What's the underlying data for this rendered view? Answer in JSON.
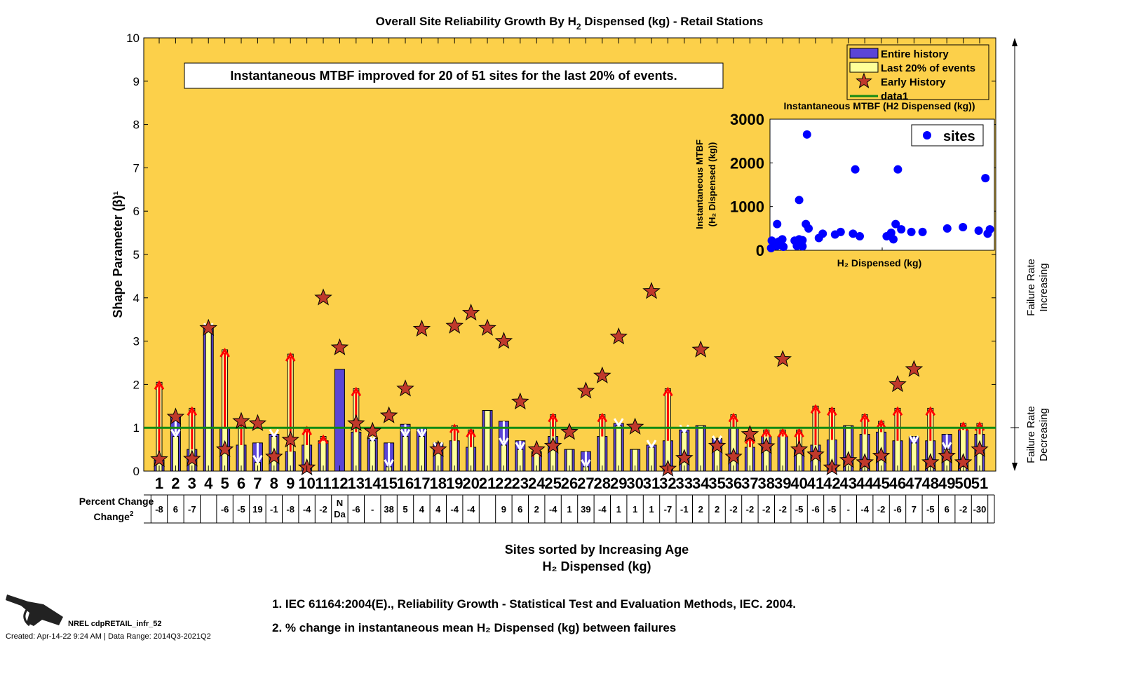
{
  "chart_data": [
    {
      "type": "bar",
      "title": "Overall Site Reliability Growth By H2 Dispensed (kg) - Retail Stations",
      "title_parts": {
        "pre": "Overall Site Reliability Growth By H",
        "sub": "2",
        "post": " Dispensed (kg) - Retail Stations"
      },
      "ylabel": "Shape Parameter (β)¹",
      "xlabel_line1": "Sites sorted by Increasing Age",
      "xlabel_line2": "H₂ Dispensed (kg)",
      "ylim": [
        0,
        10
      ],
      "yticks": [
        0,
        1,
        2,
        3,
        4,
        5,
        6,
        7,
        8,
        9,
        10
      ],
      "grid": false,
      "background": "#FCD04A",
      "reference_line": {
        "name": "data1",
        "value": 1,
        "color": "#138A13"
      },
      "annotation": "Instantaneous MTBF improved for 20 of 51 sites for the last 20% of events.",
      "legend": {
        "placement": "top-right",
        "entries": [
          "Entire history",
          "Last 20% of events",
          "Early History",
          "data1"
        ]
      },
      "colors": {
        "entire": "#5B45D6",
        "last20": "#FFFF99",
        "star": "#C0392B",
        "up_arrow": "#FF0000",
        "down_arrow": "#FFFFFF"
      },
      "categories": [
        "1",
        "2",
        "3",
        "4",
        "5",
        "6",
        "7",
        "8",
        "9",
        "10",
        "11",
        "12",
        "13",
        "14",
        "15",
        "16",
        "17",
        "18",
        "19",
        "20",
        "21",
        "22",
        "23",
        "24",
        "25",
        "26",
        "27",
        "28",
        "29",
        "30",
        "31",
        "32",
        "33",
        "34",
        "35",
        "36",
        "37",
        "38",
        "39",
        "40",
        "41",
        "42",
        "43",
        "44",
        "45",
        "46",
        "47",
        "48",
        "49",
        "50",
        "51"
      ],
      "series": [
        {
          "name": "Entire history",
          "values": [
            0.25,
            1.25,
            0.5,
            3.3,
            1.0,
            0.6,
            0.65,
            0.85,
            0.45,
            0.6,
            0.7,
            2.35,
            0.9,
            0.75,
            0.65,
            1.08,
            1.0,
            0.65,
            0.7,
            0.55,
            1.4,
            1.15,
            0.7,
            0.45,
            0.8,
            0.5,
            0.45,
            0.8,
            1.1,
            0.5,
            0.6,
            0.7,
            0.95,
            1.05,
            0.75,
            1.0,
            0.55,
            0.8,
            0.8,
            0.5,
            0.6,
            0.72,
            1.05,
            0.85,
            0.9,
            0.7,
            0.8,
            0.7,
            0.85,
            0.95,
            0.85
          ]
        },
        {
          "name": "Last 20% of events",
          "values": [
            2.05,
            0.8,
            1.45,
            3.25,
            2.8,
            1.15,
            0.2,
            0.8,
            2.7,
            1.0,
            0.8,
            null,
            1.9,
            0.7,
            0.1,
            0.8,
            0.8,
            0.5,
            1.05,
            0.95,
            1.4,
            0.6,
            0.5,
            0.5,
            1.3,
            0.5,
            0.1,
            1.3,
            1.05,
            0.5,
            0.55,
            1.9,
            0.9,
            1.05,
            0.65,
            1.3,
            0.8,
            0.95,
            0.95,
            0.95,
            1.5,
            1.45,
            1.05,
            1.3,
            1.15,
            1.45,
            0.65,
            1.45,
            0.5,
            1.1,
            1.1
          ]
        },
        {
          "name": "Early History",
          "values": [
            0.27,
            1.25,
            0.28,
            3.3,
            0.5,
            1.15,
            1.1,
            0.33,
            0.72,
            0.08,
            4.0,
            2.85,
            1.1,
            0.92,
            1.28,
            1.9,
            3.28,
            0.5,
            3.35,
            3.65,
            3.3,
            3.0,
            1.6,
            0.5,
            0.58,
            0.9,
            1.85,
            2.2,
            3.1,
            1.02,
            4.15,
            0.05,
            0.3,
            2.8,
            0.58,
            0.33,
            0.85,
            0.57,
            2.58,
            0.5,
            0.38,
            0.08,
            0.25,
            0.2,
            0.35,
            2.0,
            2.35,
            0.2,
            0.35,
            0.2,
            0.5
          ]
        }
      ],
      "percent_change_label": "Percent Change",
      "percent_change_sup": "2",
      "percent_change": [
        "-8",
        "6",
        "-7",
        "",
        "-6",
        "-5",
        "19",
        "-1",
        "-8",
        "-4",
        "-2",
        "N Da",
        "-6",
        "-",
        "38",
        "5",
        "4",
        "4",
        "-4",
        "-4",
        "",
        "9",
        "6",
        "2",
        "-4",
        "1",
        "39",
        "-4",
        "1",
        "1",
        "1",
        "-7",
        "-1",
        "2",
        "2",
        "-2",
        "-2",
        "-2",
        "-2",
        "-5",
        "-6",
        "-5",
        "-",
        "-4",
        "-2",
        "-6",
        "7",
        "-5",
        "6",
        "-2",
        "-30"
      ],
      "side_labels": {
        "increasing": [
          "Failure Rate",
          "Increasing"
        ],
        "decreasing": [
          "Failure Rate",
          "Decreasing"
        ]
      }
    },
    {
      "type": "scatter",
      "title": "Instantaneous MTBF (H2 Dispensed (kg))",
      "ylabel_line1": "Instantaneous MTBF",
      "ylabel_line2": "(H₂ Dispensed (kg))",
      "xlabel": "H₂ Dispensed (kg)",
      "ylim": [
        0,
        3000
      ],
      "yticks": [
        0,
        1000,
        2000,
        3000
      ],
      "xlim": [
        0,
        100
      ],
      "legend": {
        "placement": "top-right",
        "entries": [
          "sites"
        ]
      },
      "color": "#0000FF",
      "series": [
        {
          "name": "sites",
          "points": [
            [
              0.5,
              50
            ],
            [
              0.8,
              220
            ],
            [
              2,
              150
            ],
            [
              3,
              100
            ],
            [
              4,
              200
            ],
            [
              5.5,
              250
            ],
            [
              6,
              80
            ],
            [
              3.2,
              600
            ],
            [
              11,
              220
            ],
            [
              12,
              100
            ],
            [
              13,
              250
            ],
            [
              14.5,
              230
            ],
            [
              14.5,
              90
            ],
            [
              13,
              1150
            ],
            [
              16.5,
              2650
            ],
            [
              16,
              600
            ],
            [
              17.2,
              500
            ],
            [
              21.8,
              280
            ],
            [
              23.5,
              380
            ],
            [
              29,
              360
            ],
            [
              31.5,
              420
            ],
            [
              38,
              1850
            ],
            [
              37,
              380
            ],
            [
              40,
              320
            ],
            [
              52,
              320
            ],
            [
              54,
              400
            ],
            [
              56,
              600
            ],
            [
              57,
              1850
            ],
            [
              55,
              250
            ],
            [
              58.5,
              480
            ],
            [
              63,
              420
            ],
            [
              68,
              420
            ],
            [
              79,
              500
            ],
            [
              86,
              530
            ],
            [
              93,
              450
            ],
            [
              96,
              1650
            ],
            [
              97,
              380
            ],
            [
              98,
              480
            ]
          ]
        }
      ]
    }
  ],
  "footnotes": [
    "1. IEC 61164:2004(E)., Reliability Growth - Statistical Test and Evaluation Methods, IEC. 2004.",
    "2. % change in instantaneous mean H₂ Dispensed (kg) between failures"
  ],
  "branding": {
    "label": "NREL cdpRETAIL_infr_52",
    "created": "Created: Apr-14-22  9:24 AM | Data Range: 2014Q3-2021Q2",
    "logo_icon": "fuel-nozzle-icon"
  }
}
